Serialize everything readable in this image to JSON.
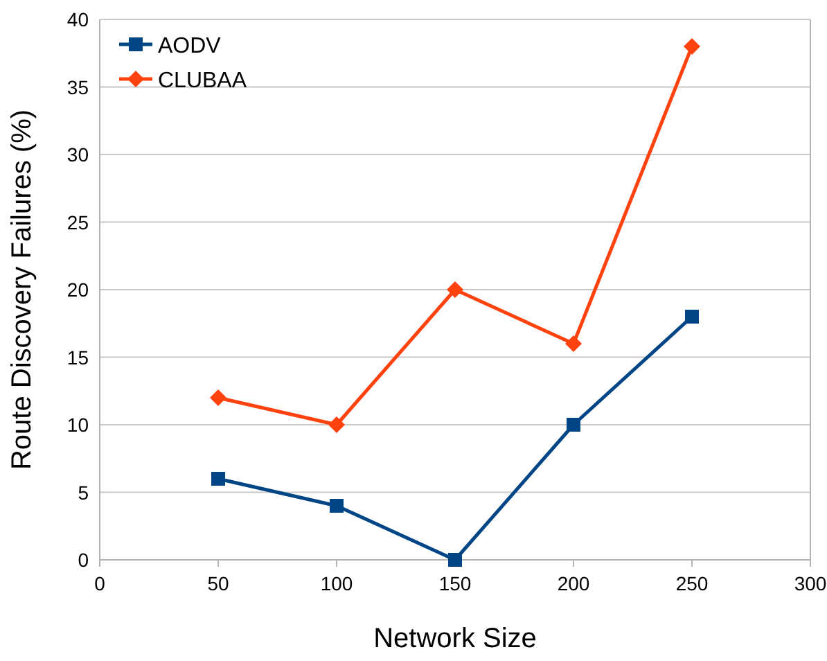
{
  "chart_data": {
    "type": "line",
    "xlabel": "Network Size",
    "ylabel": "Route Discovery Failures (%)",
    "x": [
      50,
      100,
      150,
      200,
      250
    ],
    "series": [
      {
        "name": "AODV",
        "color": "#004586",
        "marker": "square",
        "values": [
          6,
          4,
          0,
          10,
          18
        ]
      },
      {
        "name": "CLUBAA",
        "color": "#ff420e",
        "marker": "diamond",
        "values": [
          12,
          10,
          20,
          16,
          38
        ]
      }
    ],
    "xlim": [
      0,
      300
    ],
    "xticks": [
      0,
      50,
      100,
      150,
      200,
      250,
      300
    ],
    "ylim": [
      0,
      40
    ],
    "yticks": [
      0,
      5,
      10,
      15,
      20,
      25,
      30,
      35,
      40
    ],
    "grid": "y",
    "legend": "top left",
    "line_style": "solid"
  }
}
